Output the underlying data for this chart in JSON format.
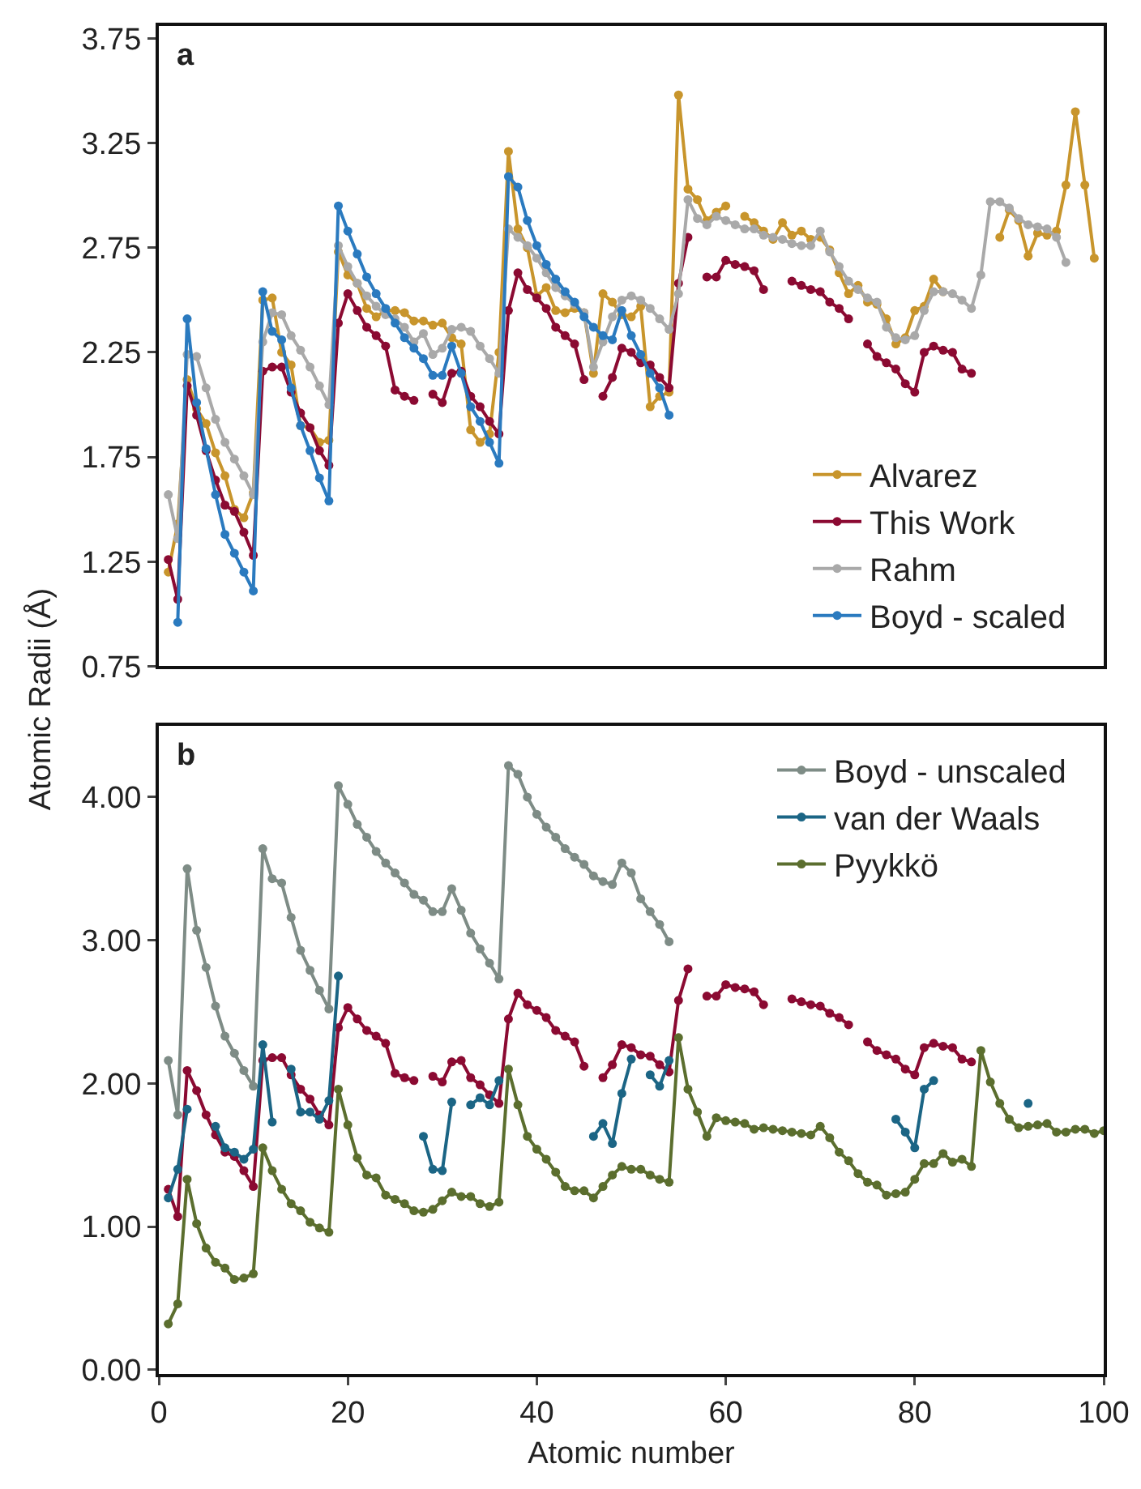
{
  "chart_data": [
    {
      "type": "line",
      "title": "a",
      "ylabel": "Atomic Radii (Å)",
      "x": [
        1,
        2,
        3,
        4,
        5,
        6,
        7,
        8,
        9,
        10,
        11,
        12,
        13,
        14,
        15,
        16,
        17,
        18,
        19,
        20,
        21,
        22,
        23,
        24,
        25,
        26,
        27,
        28,
        29,
        30,
        31,
        32,
        33,
        34,
        35,
        36,
        37,
        38,
        39,
        40,
        41,
        42,
        43,
        44,
        45,
        46,
        47,
        48,
        49,
        50,
        51,
        52,
        53,
        54,
        55,
        56,
        57,
        58,
        59,
        60,
        61,
        62,
        63,
        64,
        65,
        66,
        67,
        68,
        69,
        70,
        71,
        72,
        73,
        74,
        75,
        76,
        77,
        78,
        79,
        80,
        81,
        82,
        83,
        84,
        85,
        86,
        87,
        88,
        89,
        90,
        91,
        92,
        93,
        94,
        95,
        96,
        97,
        98,
        99
      ],
      "xlim": [
        0,
        100
      ],
      "ylim": [
        0.75,
        3.81
      ],
      "yticks": [
        0.75,
        1.25,
        1.75,
        2.25,
        2.75,
        3.25,
        3.75
      ],
      "tick_labels": "y",
      "grid": false,
      "legend": "bottom right",
      "marker": "circle",
      "line_style": "solid",
      "series": [
        {
          "name": "Alvarez",
          "color": "#c8952c",
          "values": [
            1.2,
            1.43,
            2.12,
            1.98,
            1.91,
            1.77,
            1.66,
            1.5,
            1.46,
            1.58,
            2.5,
            2.51,
            2.25,
            2.19,
            1.9,
            1.89,
            1.82,
            1.83,
            2.73,
            2.62,
            2.58,
            2.46,
            2.42,
            2.45,
            2.45,
            2.44,
            2.4,
            2.4,
            2.38,
            2.39,
            2.32,
            2.29,
            1.88,
            1.82,
            1.86,
            2.25,
            3.21,
            2.84,
            2.75,
            2.52,
            2.56,
            2.45,
            2.44,
            2.46,
            2.44,
            2.15,
            2.53,
            2.49,
            2.43,
            2.42,
            2.47,
            1.99,
            2.04,
            2.06,
            3.48,
            3.03,
            2.98,
            2.88,
            2.92,
            2.95,
            null,
            2.9,
            2.87,
            2.83,
            2.79,
            2.87,
            2.81,
            2.83,
            2.79,
            2.8,
            2.74,
            2.63,
            2.53,
            2.57,
            2.49,
            2.48,
            2.41,
            2.29,
            2.32,
            2.45,
            2.47,
            2.6,
            2.54,
            null,
            null,
            null,
            null,
            null,
            2.8,
            2.93,
            2.88,
            2.71,
            2.82,
            2.81,
            2.83,
            3.05,
            3.4,
            3.05,
            2.7
          ]
        },
        {
          "name": "This Work",
          "color": "#8b0a32",
          "values": [
            1.26,
            1.07,
            2.09,
            1.95,
            1.78,
            1.64,
            1.52,
            1.49,
            1.39,
            1.28,
            2.16,
            2.18,
            2.18,
            2.06,
            1.96,
            1.89,
            1.78,
            1.71,
            2.39,
            2.53,
            2.45,
            2.37,
            2.33,
            2.28,
            2.07,
            2.04,
            2.02,
            null,
            2.05,
            2.01,
            2.15,
            2.16,
            2.04,
            1.99,
            1.92,
            1.86,
            2.45,
            2.63,
            2.55,
            2.51,
            2.46,
            2.37,
            2.33,
            2.29,
            2.12,
            null,
            2.04,
            2.13,
            2.27,
            2.25,
            2.2,
            2.19,
            2.13,
            2.08,
            2.58,
            2.8,
            null,
            2.61,
            2.61,
            2.69,
            2.67,
            2.66,
            2.64,
            2.55,
            null,
            null,
            2.59,
            2.57,
            2.55,
            2.54,
            2.49,
            2.46,
            2.41,
            null,
            2.29,
            2.23,
            2.2,
            2.17,
            2.1,
            2.06,
            2.25,
            2.28,
            2.26,
            2.25,
            2.17,
            2.15,
            null,
            null,
            null,
            null,
            null,
            null,
            null,
            null,
            null,
            null,
            null,
            null,
            null
          ]
        },
        {
          "name": "Rahm",
          "color": "#a9a9a9",
          "values": [
            1.57,
            1.36,
            2.24,
            2.23,
            2.08,
            1.93,
            1.82,
            1.74,
            1.66,
            1.57,
            2.3,
            2.44,
            2.43,
            2.33,
            2.26,
            2.18,
            2.09,
            2.0,
            2.76,
            2.66,
            2.58,
            2.52,
            2.47,
            2.43,
            2.41,
            2.37,
            2.3,
            2.34,
            2.24,
            2.27,
            2.36,
            2.37,
            2.35,
            2.28,
            2.22,
            2.15,
            2.84,
            2.8,
            2.76,
            2.7,
            2.63,
            2.56,
            2.52,
            2.48,
            2.44,
            2.18,
            2.3,
            2.42,
            2.5,
            2.52,
            2.5,
            2.46,
            2.41,
            2.36,
            2.53,
            2.98,
            2.89,
            2.86,
            2.9,
            2.88,
            2.86,
            2.84,
            2.84,
            2.81,
            2.8,
            2.79,
            2.77,
            2.76,
            2.76,
            2.83,
            2.73,
            2.66,
            2.59,
            2.55,
            2.51,
            2.49,
            2.37,
            2.32,
            2.31,
            2.33,
            2.45,
            2.54,
            2.54,
            2.53,
            2.5,
            2.46,
            2.62,
            2.97,
            2.97,
            2.94,
            2.89,
            2.86,
            2.85,
            2.84,
            2.8,
            2.68,
            null,
            null,
            null
          ]
        },
        {
          "name": "Boyd - scaled",
          "color": "#2a7abf",
          "values": [
            null,
            0.96,
            2.41,
            2.01,
            1.79,
            1.57,
            1.38,
            1.29,
            1.2,
            1.11,
            2.54,
            2.35,
            2.31,
            2.08,
            1.9,
            1.78,
            1.65,
            1.54,
            2.95,
            2.83,
            2.72,
            2.61,
            2.53,
            2.46,
            2.39,
            2.32,
            2.27,
            2.22,
            2.14,
            2.14,
            2.28,
            2.15,
            1.99,
            1.92,
            1.82,
            1.72,
            3.09,
            3.04,
            2.88,
            2.76,
            2.67,
            2.6,
            2.54,
            2.49,
            2.42,
            2.37,
            2.33,
            2.31,
            2.45,
            2.33,
            2.24,
            2.15,
            2.08,
            1.95,
            null,
            null,
            null,
            null,
            null,
            null,
            null,
            null,
            null,
            null,
            null,
            null,
            null,
            null,
            null,
            null,
            null,
            null,
            null,
            null,
            null,
            null,
            null,
            null,
            null,
            null,
            null,
            null,
            null,
            null,
            null,
            null,
            null,
            null,
            null,
            null,
            null,
            null,
            null,
            null,
            null,
            null,
            null,
            null,
            null
          ]
        }
      ]
    },
    {
      "type": "line",
      "title": "b",
      "xlabel": "Atomic number",
      "x": [
        1,
        2,
        3,
        4,
        5,
        6,
        7,
        8,
        9,
        10,
        11,
        12,
        13,
        14,
        15,
        16,
        17,
        18,
        19,
        20,
        21,
        22,
        23,
        24,
        25,
        26,
        27,
        28,
        29,
        30,
        31,
        32,
        33,
        34,
        35,
        36,
        37,
        38,
        39,
        40,
        41,
        42,
        43,
        44,
        45,
        46,
        47,
        48,
        49,
        50,
        51,
        52,
        53,
        54,
        55,
        56,
        57,
        58,
        59,
        60,
        61,
        62,
        63,
        64,
        65,
        66,
        67,
        68,
        69,
        70,
        71,
        72,
        73,
        74,
        75,
        76,
        77,
        78,
        79,
        80,
        81,
        82,
        83,
        84,
        85,
        86,
        87,
        88,
        89,
        90,
        91,
        92,
        93,
        94,
        95,
        96,
        97,
        98,
        99,
        100
      ],
      "xlim": [
        0,
        100
      ],
      "xticks": [
        0,
        20,
        40,
        60,
        80,
        100
      ],
      "ylim": [
        -0.03,
        4.5
      ],
      "yticks": [
        {
          "value": 0,
          "label": "0.00"
        },
        {
          "value": 1,
          "label": "1.00"
        },
        {
          "value": 2,
          "label": "2.00"
        },
        {
          "value": 3,
          "label": "3.00"
        },
        {
          "value": 4,
          "label": "4.00"
        }
      ],
      "grid": false,
      "legend": "top right",
      "marker": "circle",
      "line_style": "solid",
      "series": [
        {
          "name": "Boyd - unscaled",
          "color": "#7e8c86",
          "values": [
            2.16,
            1.78,
            3.5,
            3.07,
            2.81,
            2.54,
            2.33,
            2.21,
            2.09,
            1.98,
            3.64,
            3.43,
            3.4,
            3.16,
            2.93,
            2.79,
            2.65,
            2.52,
            4.08,
            3.95,
            3.81,
            3.72,
            3.62,
            3.54,
            3.47,
            3.4,
            3.32,
            3.28,
            3.2,
            3.2,
            3.36,
            3.21,
            3.05,
            2.94,
            2.84,
            2.73,
            4.22,
            4.16,
            4.0,
            3.88,
            3.79,
            3.72,
            3.64,
            3.58,
            3.53,
            3.45,
            3.41,
            3.39,
            3.54,
            3.47,
            3.29,
            3.2,
            3.11,
            2.99,
            null,
            null,
            null,
            null,
            null,
            null,
            null,
            null,
            null,
            null,
            null,
            null,
            null,
            null,
            null,
            null,
            null,
            null,
            null,
            null,
            null,
            null,
            null,
            null,
            null,
            null,
            null,
            null,
            null,
            null,
            null,
            null,
            null,
            null,
            null,
            null,
            null,
            null,
            null,
            null,
            null,
            null,
            null,
            null,
            null,
            null
          ]
        },
        {
          "color": "#8b0a32",
          "values": [
            1.26,
            1.07,
            2.09,
            1.95,
            1.78,
            1.64,
            1.52,
            1.49,
            1.39,
            1.28,
            2.16,
            2.18,
            2.18,
            2.06,
            1.96,
            1.89,
            1.78,
            1.71,
            2.39,
            2.53,
            2.45,
            2.37,
            2.33,
            2.28,
            2.07,
            2.04,
            2.02,
            null,
            2.05,
            2.01,
            2.15,
            2.16,
            2.04,
            1.99,
            1.92,
            1.86,
            2.45,
            2.63,
            2.55,
            2.51,
            2.46,
            2.37,
            2.33,
            2.29,
            2.12,
            null,
            2.04,
            2.13,
            2.27,
            2.25,
            2.2,
            2.19,
            2.13,
            2.08,
            2.58,
            2.8,
            null,
            2.61,
            2.61,
            2.69,
            2.67,
            2.66,
            2.64,
            2.55,
            null,
            null,
            2.59,
            2.57,
            2.55,
            2.54,
            2.49,
            2.46,
            2.41,
            null,
            2.29,
            2.23,
            2.2,
            2.17,
            2.1,
            2.06,
            2.25,
            2.28,
            2.26,
            2.25,
            2.17,
            2.15,
            null,
            null,
            null,
            null,
            null,
            null,
            null,
            null,
            null,
            null,
            null,
            null,
            null,
            null
          ]
        },
        {
          "name": "van der Waals",
          "color": "#1b6585",
          "values": [
            1.2,
            1.4,
            1.82,
            null,
            null,
            1.7,
            1.55,
            1.52,
            1.47,
            1.54,
            2.27,
            1.73,
            null,
            2.1,
            1.8,
            1.8,
            1.75,
            1.88,
            2.75,
            null,
            null,
            null,
            null,
            null,
            null,
            null,
            null,
            1.63,
            1.4,
            1.39,
            1.87,
            null,
            1.85,
            1.9,
            1.85,
            2.02,
            null,
            null,
            null,
            null,
            null,
            null,
            null,
            null,
            null,
            1.63,
            1.72,
            1.58,
            1.93,
            2.17,
            null,
            2.06,
            1.98,
            2.16,
            null,
            null,
            null,
            null,
            null,
            null,
            null,
            null,
            null,
            null,
            null,
            null,
            null,
            null,
            null,
            null,
            null,
            null,
            null,
            null,
            null,
            null,
            null,
            1.75,
            1.66,
            1.55,
            1.96,
            2.02,
            null,
            null,
            null,
            null,
            null,
            null,
            null,
            null,
            null,
            1.86,
            null,
            null,
            null,
            null,
            null,
            null,
            null,
            null
          ]
        },
        {
          "name": "Pyykkö",
          "color": "#5b6e2e",
          "values": [
            0.32,
            0.46,
            1.33,
            1.02,
            0.85,
            0.75,
            0.71,
            0.63,
            0.64,
            0.67,
            1.55,
            1.39,
            1.26,
            1.16,
            1.11,
            1.03,
            0.99,
            0.96,
            1.96,
            1.71,
            1.48,
            1.36,
            1.34,
            1.22,
            1.19,
            1.16,
            1.11,
            1.1,
            1.12,
            1.18,
            1.24,
            1.21,
            1.21,
            1.16,
            1.14,
            1.17,
            2.1,
            1.85,
            1.63,
            1.54,
            1.47,
            1.38,
            1.28,
            1.25,
            1.25,
            1.2,
            1.28,
            1.36,
            1.42,
            1.4,
            1.4,
            1.36,
            1.33,
            1.31,
            2.32,
            1.96,
            1.8,
            1.63,
            1.76,
            1.74,
            1.73,
            1.72,
            1.68,
            1.69,
            1.68,
            1.67,
            1.66,
            1.65,
            1.64,
            1.7,
            1.62,
            1.52,
            1.46,
            1.37,
            1.31,
            1.29,
            1.22,
            1.23,
            1.24,
            1.33,
            1.44,
            1.44,
            1.51,
            1.45,
            1.47,
            1.42,
            2.23,
            2.01,
            1.86,
            1.75,
            1.69,
            1.7,
            1.71,
            1.72,
            1.66,
            1.66,
            1.68,
            1.68,
            1.65,
            1.67
          ]
        }
      ]
    }
  ]
}
